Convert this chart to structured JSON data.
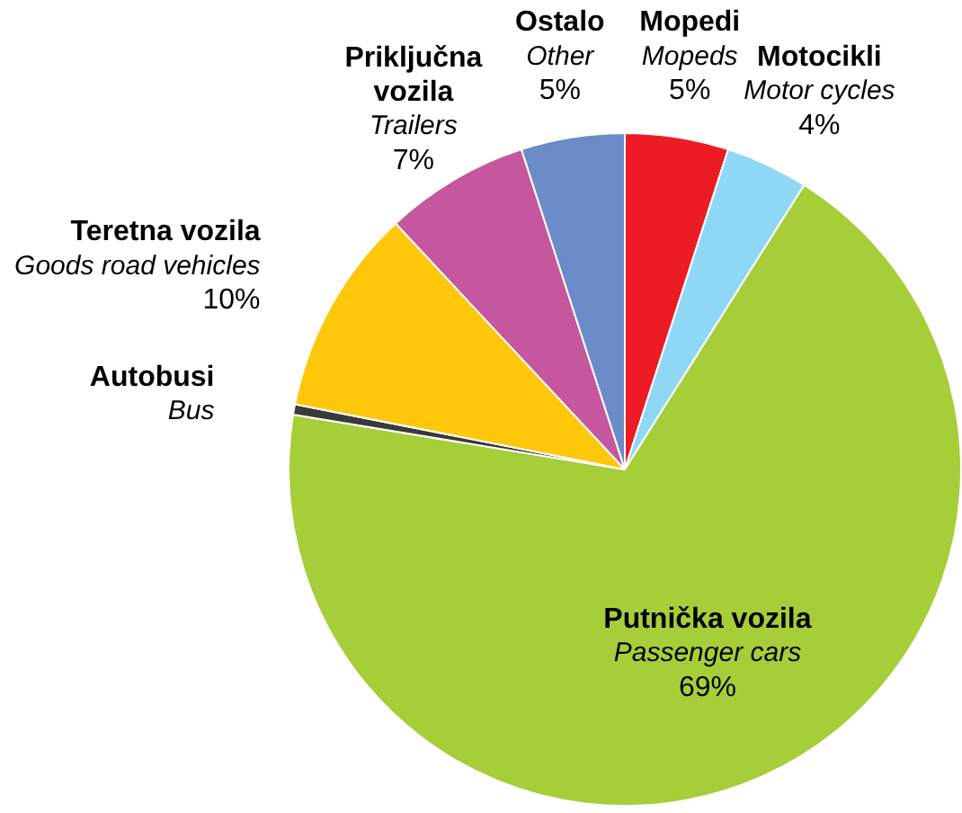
{
  "chart_data": {
    "type": "pie",
    "categories": [
      "Mopedi",
      "Motocikli",
      "Putnička vozila",
      "Autobusi",
      "Teretna vozila",
      "Priključna vozila",
      "Ostalo"
    ],
    "values": [
      5,
      4,
      69,
      0.5,
      10,
      7,
      5
    ],
    "colors": [
      "#ed1c24",
      "#8fd8f5",
      "#a6ce39",
      "#3a3a3a",
      "#ffc70a",
      "#c6579f",
      "#6b8cc8"
    ],
    "value_labels": [
      "5%",
      "4%",
      "69%",
      null,
      "10%",
      "7%",
      "5%"
    ],
    "annotations": [
      "Mopeds",
      "Motor cycles",
      "Passenger cars",
      "Bus",
      "Goods road vehicles",
      "Trailers",
      "Other"
    ],
    "legend": false
  }
}
